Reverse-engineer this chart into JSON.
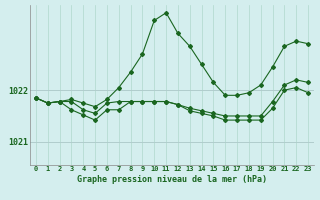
{
  "title": "Graphe pression niveau de la mer (hPa)",
  "bg_color": "#d4eeee",
  "grid_color_v": "#b0d8cc",
  "grid_color_h": "#b0cccc",
  "line_color": "#1a6620",
  "ylim": [
    1020.55,
    1023.65
  ],
  "xlim": [
    -0.5,
    23.5
  ],
  "yticks": [
    1021,
    1022
  ],
  "xticks": [
    0,
    1,
    2,
    3,
    4,
    5,
    6,
    7,
    8,
    9,
    10,
    11,
    12,
    13,
    14,
    15,
    16,
    17,
    18,
    19,
    20,
    21,
    22,
    23
  ],
  "line1_x": [
    0,
    1,
    2,
    3,
    4,
    5,
    6,
    7,
    8,
    9,
    10,
    11,
    12,
    13,
    14,
    15,
    16,
    17,
    18,
    19,
    20,
    21,
    22,
    23
  ],
  "line1_y": [
    1021.85,
    1021.75,
    1021.78,
    1021.82,
    1021.75,
    1021.68,
    1021.82,
    1022.05,
    1022.35,
    1022.7,
    1023.35,
    1023.5,
    1023.1,
    1022.85,
    1022.5,
    1022.15,
    1021.9,
    1021.9,
    1021.95,
    1022.1,
    1022.45,
    1022.85,
    1022.95,
    1022.9
  ],
  "line2_x": [
    0,
    1,
    2,
    3,
    4,
    5,
    6,
    7,
    8,
    9,
    10,
    11,
    12,
    13,
    14,
    15,
    16,
    17,
    18,
    19,
    20,
    21,
    22,
    23
  ],
  "line2_y": [
    1021.85,
    1021.75,
    1021.78,
    1021.78,
    1021.62,
    1021.55,
    1021.75,
    1021.78,
    1021.78,
    1021.78,
    1021.78,
    1021.78,
    1021.72,
    1021.65,
    1021.6,
    1021.55,
    1021.5,
    1021.5,
    1021.5,
    1021.5,
    1021.78,
    1022.1,
    1022.2,
    1022.15
  ],
  "line3_x": [
    0,
    1,
    2,
    3,
    4,
    5,
    6,
    7,
    8,
    9,
    10,
    11,
    12,
    13,
    14,
    15,
    16,
    17,
    18,
    19,
    20,
    21,
    22,
    23
  ],
  "line3_y": [
    1021.85,
    1021.75,
    1021.78,
    1021.62,
    1021.52,
    1021.42,
    1021.62,
    1021.62,
    1021.78,
    1021.78,
    1021.78,
    1021.78,
    1021.72,
    1021.6,
    1021.55,
    1021.5,
    1021.42,
    1021.42,
    1021.42,
    1021.42,
    1021.65,
    1022.0,
    1022.05,
    1021.95
  ],
  "tick_fontsize": 5,
  "xlabel_fontsize": 6,
  "ylabel_fontsize": 6
}
